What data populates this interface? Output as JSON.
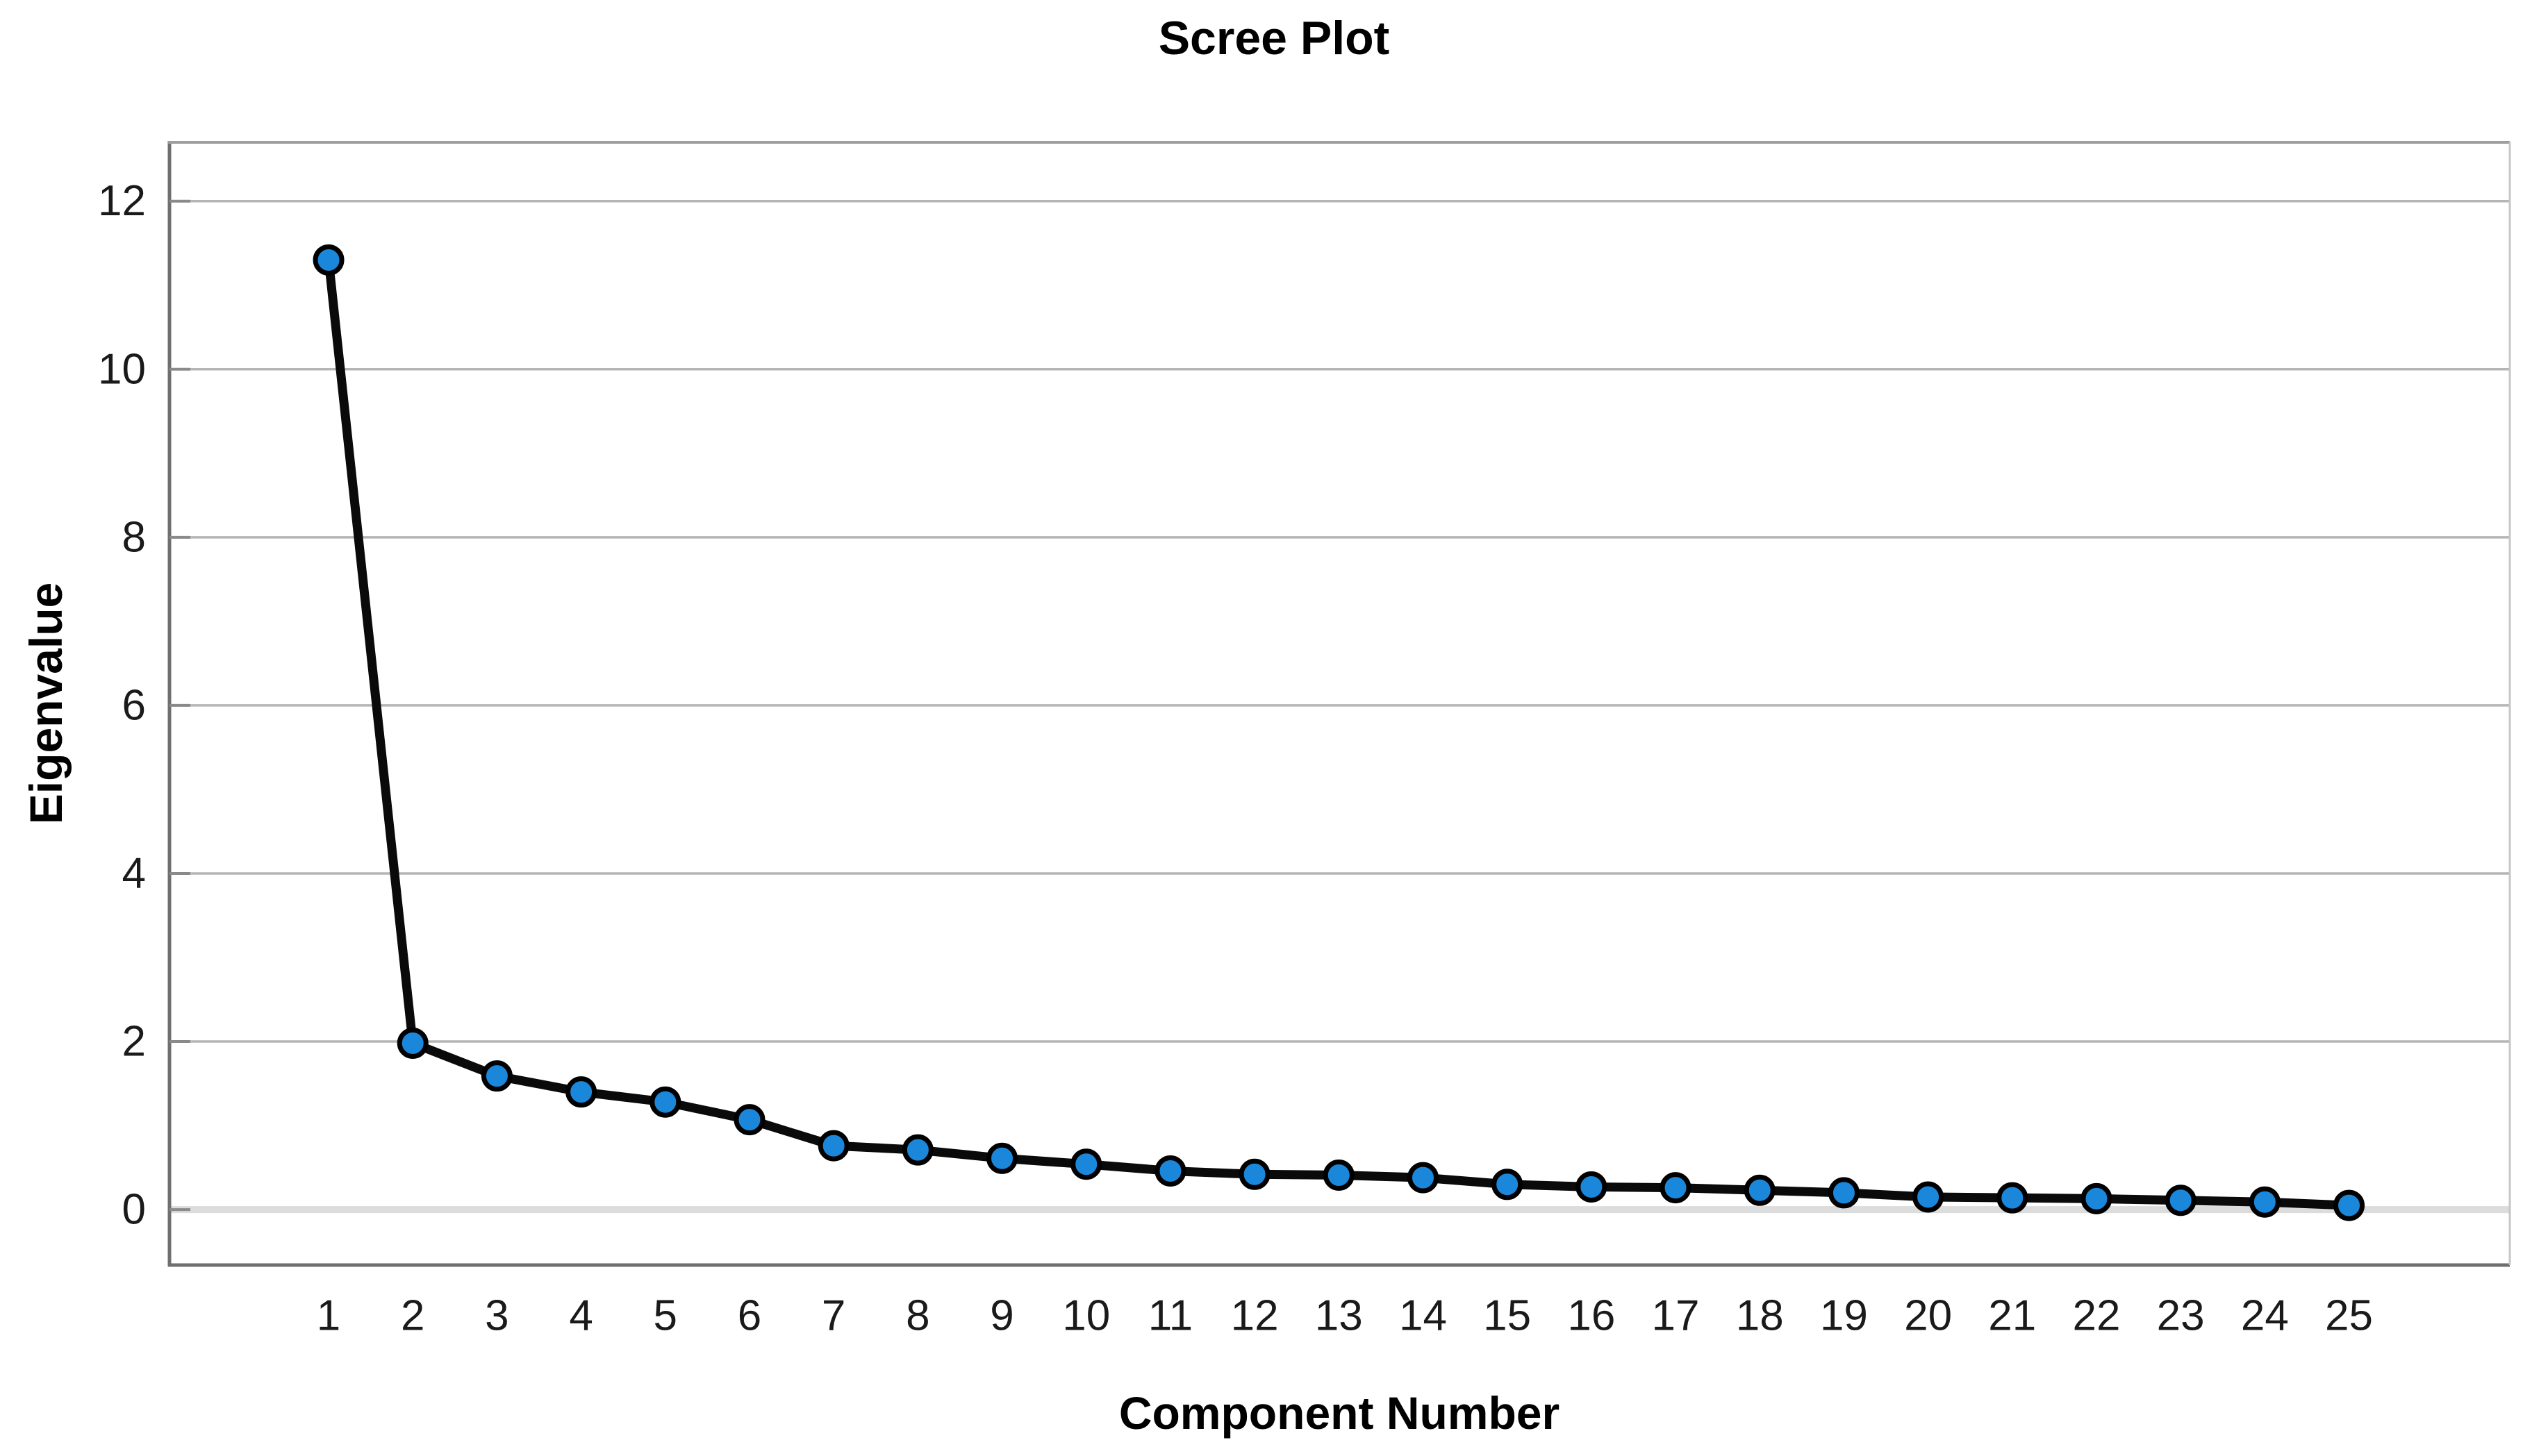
{
  "chart": {
    "title": "Scree Plot",
    "xlabel": "Component Number",
    "ylabel": "Eigenvalue"
  },
  "chart_data": {
    "type": "line",
    "title": "Scree Plot",
    "xlabel": "Component Number",
    "ylabel": "Eigenvalue",
    "x": [
      1,
      2,
      3,
      4,
      5,
      6,
      7,
      8,
      9,
      10,
      11,
      12,
      13,
      14,
      15,
      16,
      17,
      18,
      19,
      20,
      21,
      22,
      23,
      24,
      25
    ],
    "values": [
      11.3,
      1.98,
      1.59,
      1.4,
      1.28,
      1.07,
      0.76,
      0.71,
      0.61,
      0.54,
      0.46,
      0.42,
      0.41,
      0.38,
      0.3,
      0.27,
      0.26,
      0.23,
      0.2,
      0.15,
      0.14,
      0.13,
      0.11,
      0.09,
      0.05
    ],
    "x_ticks": [
      "1",
      "2",
      "3",
      "4",
      "5",
      "6",
      "7",
      "8",
      "9",
      "10",
      "11",
      "12",
      "13",
      "14",
      "15",
      "16",
      "17",
      "18",
      "19",
      "20",
      "21",
      "22",
      "23",
      "24",
      "25"
    ],
    "y_ticks": [
      "0",
      "2",
      "4",
      "6",
      "8",
      "10",
      "12"
    ],
    "y_tick_values": [
      0,
      2,
      4,
      6,
      8,
      10,
      12
    ],
    "xlim": [
      -0.89,
      26.91
    ],
    "ylim": [
      -0.66,
      12.7
    ],
    "grid": "horizontal-only",
    "legend": "none",
    "colors": {
      "line": "#0a0a0a",
      "marker_fill": "#1b87db",
      "marker_outline": "#000000",
      "gridline": "#b5b5b5",
      "zero_gridline": "#dcdcdc",
      "frame_dark": "#6f6f6f",
      "frame_top": "#9e9e9e",
      "frame_right": "#c6c6c6",
      "tick": "#8a8a8a",
      "background": "#ffffff"
    }
  }
}
